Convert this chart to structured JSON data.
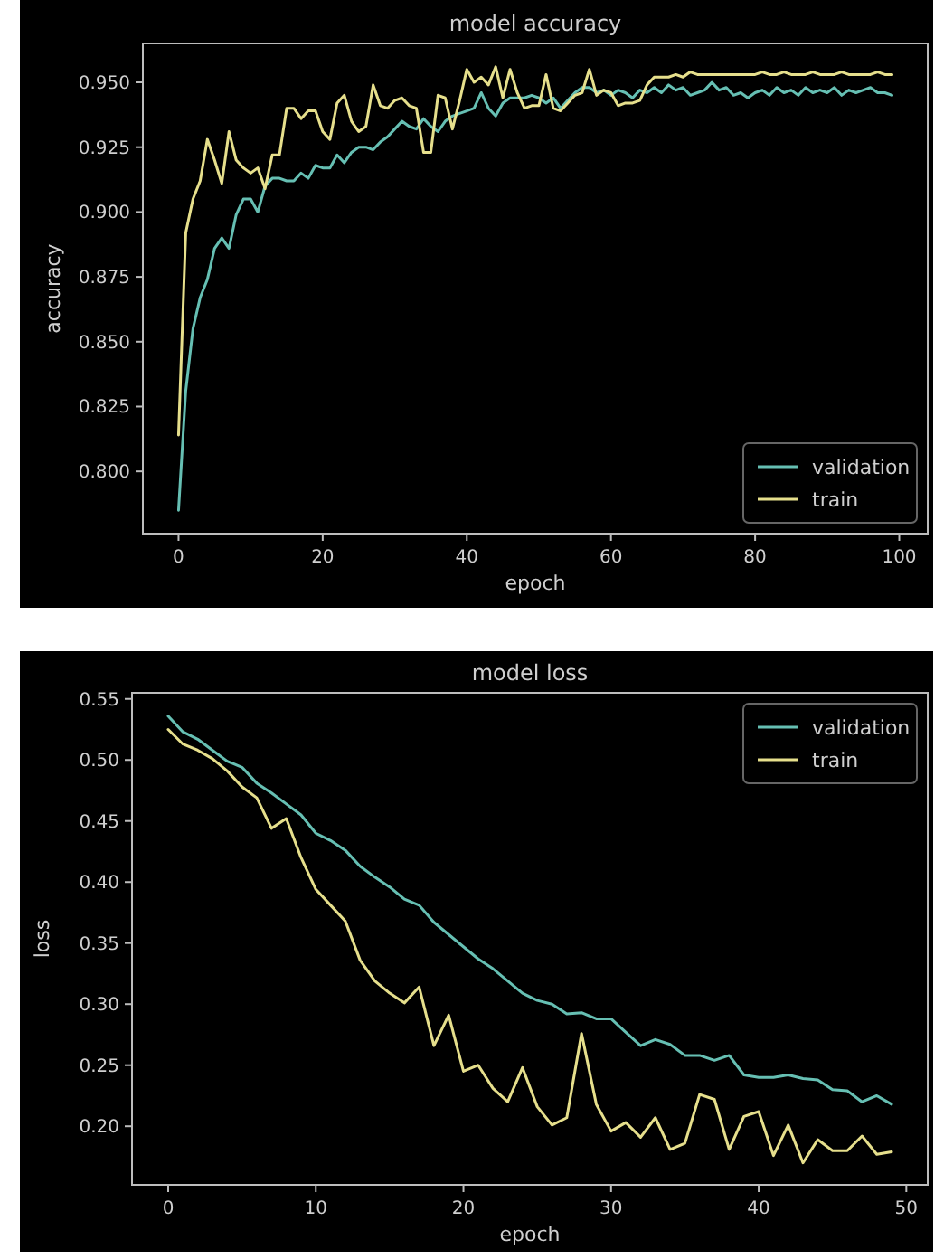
{
  "chart_data": [
    {
      "type": "line",
      "title": "model accuracy",
      "xlabel": "epoch",
      "ylabel": "accuracy",
      "x": [
        0,
        1,
        2,
        3,
        4,
        5,
        6,
        7,
        8,
        9,
        10,
        11,
        12,
        13,
        14,
        15,
        16,
        17,
        18,
        19,
        20,
        21,
        22,
        23,
        24,
        25,
        26,
        27,
        28,
        29,
        30,
        31,
        32,
        33,
        34,
        35,
        36,
        37,
        38,
        39,
        40,
        41,
        42,
        43,
        44,
        45,
        46,
        47,
        48,
        49,
        50,
        51,
        52,
        53,
        54,
        55,
        56,
        57,
        58,
        59,
        60,
        61,
        62,
        63,
        64,
        65,
        66,
        67,
        68,
        69,
        70,
        71,
        72,
        73,
        74,
        75,
        76,
        77,
        78,
        79,
        80,
        81,
        82,
        83,
        84,
        85,
        86,
        87,
        88,
        89,
        90,
        91,
        92,
        93,
        94,
        95,
        96,
        97,
        98,
        99
      ],
      "series": [
        {
          "name": "validation",
          "color": "#66bfb3",
          "values": [
            0.785,
            0.831,
            0.855,
            0.867,
            0.874,
            0.886,
            0.89,
            0.886,
            0.899,
            0.905,
            0.905,
            0.9,
            0.91,
            0.913,
            0.913,
            0.912,
            0.912,
            0.915,
            0.913,
            0.918,
            0.917,
            0.917,
            0.922,
            0.919,
            0.923,
            0.925,
            0.925,
            0.924,
            0.927,
            0.929,
            0.932,
            0.935,
            0.933,
            0.932,
            0.936,
            0.933,
            0.931,
            0.935,
            0.937,
            0.938,
            0.939,
            0.94,
            0.946,
            0.94,
            0.937,
            0.942,
            0.944,
            0.944,
            0.944,
            0.945,
            0.944,
            0.942,
            0.944,
            0.94,
            0.943,
            0.946,
            0.948,
            0.948,
            0.946,
            0.947,
            0.945,
            0.947,
            0.946,
            0.944,
            0.947,
            0.946,
            0.948,
            0.946,
            0.949,
            0.947,
            0.948,
            0.945,
            0.946,
            0.947,
            0.95,
            0.947,
            0.948,
            0.945,
            0.946,
            0.944,
            0.946,
            0.947,
            0.945,
            0.948,
            0.946,
            0.947,
            0.945,
            0.948,
            0.946,
            0.947,
            0.946,
            0.948,
            0.945,
            0.947,
            0.946,
            0.947,
            0.948,
            0.946,
            0.946,
            0.945
          ]
        },
        {
          "name": "train",
          "color": "#e6df8c",
          "values": [
            0.814,
            0.892,
            0.905,
            0.912,
            0.928,
            0.92,
            0.911,
            0.931,
            0.92,
            0.917,
            0.915,
            0.917,
            0.909,
            0.922,
            0.922,
            0.94,
            0.94,
            0.936,
            0.939,
            0.939,
            0.931,
            0.928,
            0.942,
            0.945,
            0.935,
            0.931,
            0.933,
            0.949,
            0.941,
            0.94,
            0.943,
            0.944,
            0.941,
            0.94,
            0.923,
            0.923,
            0.945,
            0.944,
            0.932,
            0.943,
            0.955,
            0.95,
            0.952,
            0.949,
            0.956,
            0.944,
            0.955,
            0.946,
            0.94,
            0.941,
            0.941,
            0.953,
            0.94,
            0.939,
            0.942,
            0.945,
            0.946,
            0.955,
            0.945,
            0.947,
            0.946,
            0.941,
            0.942,
            0.942,
            0.943,
            0.949,
            0.952,
            0.952,
            0.952,
            0.953,
            0.952,
            0.954,
            0.953,
            0.953,
            0.953,
            0.953,
            0.953,
            0.953,
            0.953,
            0.953,
            0.953,
            0.954,
            0.953,
            0.953,
            0.954,
            0.953,
            0.953,
            0.953,
            0.954,
            0.953,
            0.953,
            0.953,
            0.954,
            0.953,
            0.953,
            0.953,
            0.953,
            0.954,
            0.953,
            0.953
          ]
        }
      ],
      "xlim": [
        -4.95,
        103.95
      ],
      "xticks": [
        0,
        20,
        40,
        60,
        80,
        100
      ],
      "ylim": [
        0.776,
        0.965
      ],
      "yticks": [
        {
          "value": 0.8,
          "label": "0.800"
        },
        {
          "value": 0.825,
          "label": "0.825"
        },
        {
          "value": 0.85,
          "label": "0.850"
        },
        {
          "value": 0.875,
          "label": "0.875"
        },
        {
          "value": 0.9,
          "label": "0.900"
        },
        {
          "value": 0.925,
          "label": "0.925"
        },
        {
          "value": 0.95,
          "label": "0.950"
        }
      ],
      "legend": "bottom right"
    },
    {
      "type": "line",
      "title": "model loss",
      "xlabel": "epoch",
      "ylabel": "loss",
      "x": [
        0,
        1,
        2,
        3,
        4,
        5,
        6,
        7,
        8,
        9,
        10,
        11,
        12,
        13,
        14,
        15,
        16,
        17,
        18,
        19,
        20,
        21,
        22,
        23,
        24,
        25,
        26,
        27,
        28,
        29,
        30,
        31,
        32,
        33,
        34,
        35,
        36,
        37,
        38,
        39,
        40,
        41,
        42,
        43,
        44,
        45,
        46,
        47,
        48,
        49
      ],
      "series": [
        {
          "name": "validation",
          "color": "#66bfb3",
          "values": [
            0.536,
            0.523,
            0.517,
            0.508,
            0.499,
            0.494,
            0.481,
            0.473,
            0.464,
            0.455,
            0.44,
            0.434,
            0.426,
            0.413,
            0.404,
            0.396,
            0.386,
            0.381,
            0.367,
            0.357,
            0.347,
            0.337,
            0.329,
            0.319,
            0.309,
            0.303,
            0.3,
            0.292,
            0.293,
            0.288,
            0.288,
            0.277,
            0.266,
            0.271,
            0.267,
            0.258,
            0.258,
            0.254,
            0.258,
            0.242,
            0.24,
            0.24,
            0.242,
            0.239,
            0.238,
            0.23,
            0.229,
            0.22,
            0.225,
            0.218
          ]
        },
        {
          "name": "train",
          "color": "#e6df8c",
          "values": [
            0.525,
            0.513,
            0.508,
            0.501,
            0.491,
            0.478,
            0.469,
            0.444,
            0.452,
            0.42,
            0.394,
            0.381,
            0.368,
            0.336,
            0.319,
            0.309,
            0.301,
            0.314,
            0.266,
            0.291,
            0.245,
            0.25,
            0.231,
            0.22,
            0.248,
            0.216,
            0.201,
            0.207,
            0.276,
            0.218,
            0.196,
            0.203,
            0.191,
            0.207,
            0.181,
            0.186,
            0.226,
            0.222,
            0.181,
            0.208,
            0.212,
            0.176,
            0.201,
            0.17,
            0.189,
            0.18,
            0.18,
            0.192,
            0.177,
            0.179
          ]
        }
      ],
      "xlim": [
        -2.45,
        51.45
      ],
      "xticks": [
        0,
        10,
        20,
        30,
        40,
        50
      ],
      "ylim": [
        0.152,
        0.555
      ],
      "yticks": [
        {
          "value": 0.2,
          "label": "0.20"
        },
        {
          "value": 0.25,
          "label": "0.25"
        },
        {
          "value": 0.3,
          "label": "0.30"
        },
        {
          "value": 0.35,
          "label": "0.35"
        },
        {
          "value": 0.4,
          "label": "0.40"
        },
        {
          "value": 0.45,
          "label": "0.45"
        },
        {
          "value": 0.5,
          "label": "0.50"
        },
        {
          "value": 0.55,
          "label": "0.55"
        }
      ],
      "legend": "top right"
    }
  ]
}
